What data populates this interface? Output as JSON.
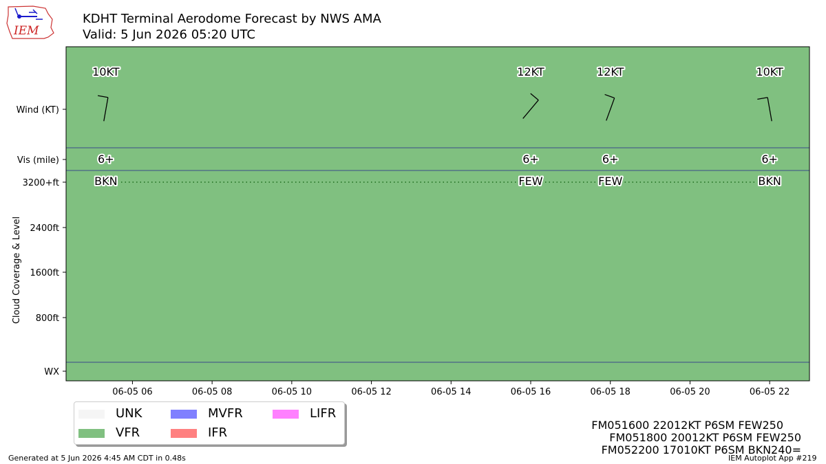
{
  "title": {
    "line1": "KDHT Terminal Aerodome Forecast by NWS AMA",
    "line2": "Valid: 5 Jun 2026 05:20 UTC"
  },
  "logo": {
    "text": "IEM"
  },
  "chart_data": {
    "type": "timeseries",
    "x_ticks": [
      "06-05 06",
      "06-05 08",
      "06-05 10",
      "06-05 12",
      "06-05 14",
      "06-05 16",
      "06-05 18",
      "06-05 20",
      "06-05 22"
    ],
    "y_ticks": [
      "Wind (KT)",
      "Vis (mile)",
      "3200+ft",
      "2400ft",
      "1600ft",
      "800ft",
      "WX"
    ],
    "ylabel": "Cloud Coverage & Level",
    "x_range": [
      "06-05 04:20",
      "06-05 23:00"
    ],
    "forecasts": [
      {
        "time": "06-05 05:20",
        "wind_label": "10KT",
        "wind_dir": 190,
        "wind_speed": 10,
        "vis_label": "6+",
        "cloud_label": "BKN"
      },
      {
        "time": "06-05 16:00",
        "wind_label": "12KT",
        "wind_dir": 220,
        "wind_speed": 12,
        "vis_label": "6+",
        "cloud_label": "FEW"
      },
      {
        "time": "06-05 18:00",
        "wind_label": "12KT",
        "wind_dir": 200,
        "wind_speed": 12,
        "vis_label": "6+",
        "cloud_label": "FEW"
      },
      {
        "time": "06-05 22:00",
        "wind_label": "10KT",
        "wind_dir": 170,
        "wind_speed": 10,
        "vis_label": "6+",
        "cloud_label": "BKN"
      }
    ],
    "flight_category": "VFR",
    "colors": {
      "VFR": "#80c080",
      "UNK": "#f5f5f5",
      "MVFR": "#8080ff",
      "IFR": "#ff8080",
      "LIFR": "#ff80ff"
    }
  },
  "legend": {
    "items": [
      {
        "label": "UNK",
        "color": "#f5f5f5"
      },
      {
        "label": "VFR",
        "color": "#80c080"
      },
      {
        "label": "MVFR",
        "color": "#8080ff"
      },
      {
        "label": "IFR",
        "color": "#ff8080"
      },
      {
        "label": "LIFR",
        "color": "#ff80ff"
      }
    ]
  },
  "taf_text": [
    "FM051600 22012KT P6SM FEW250",
    "FM051800 20012KT P6SM FEW250",
    "FM052200 17010KT P6SM BKN240="
  ],
  "footer": {
    "generated": "Generated at 5 Jun 2026 4:45 AM CDT in 0.48s",
    "app": "IEM Autoplot App #219"
  }
}
